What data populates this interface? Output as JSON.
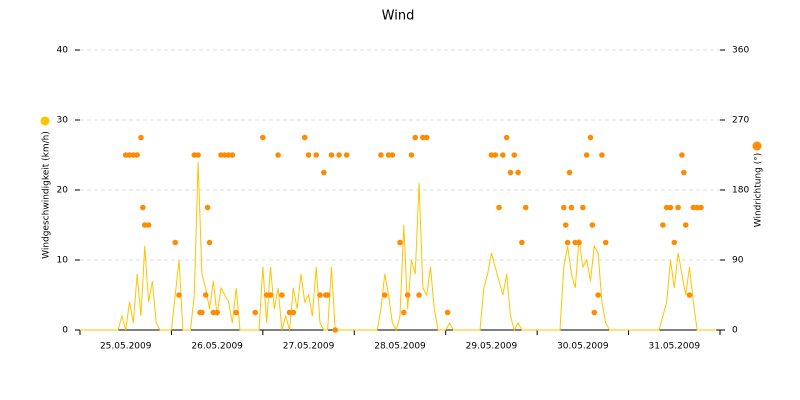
{
  "chart_data": {
    "type": "line",
    "title": "Wind",
    "categories": [
      "25.05.2009",
      "26.05.2009",
      "27.05.2009",
      "28.05.2009",
      "29.05.2009",
      "30.05.2009",
      "31.05.2009"
    ],
    "xlim": [
      0,
      168
    ],
    "xticks": [
      0,
      24,
      48,
      72,
      96,
      120,
      144,
      168
    ],
    "ylim": [
      0,
      40
    ],
    "yticks": [
      0,
      10,
      20,
      30,
      40
    ],
    "y2lim": [
      0,
      360
    ],
    "y2ticks": [
      0,
      90,
      180,
      270,
      360
    ],
    "grid": true,
    "series": [
      {
        "name": "Windgeschwindigkeit (km/h)",
        "color": "#ffc400",
        "x": [
          0,
          1,
          2,
          3,
          4,
          5,
          6,
          7,
          8,
          9,
          10,
          11,
          12,
          13,
          14,
          15,
          16,
          17,
          18,
          19,
          20,
          21,
          22,
          23,
          24,
          25,
          26,
          27,
          28,
          29,
          30,
          31,
          32,
          33,
          34,
          35,
          36,
          37,
          38,
          39,
          40,
          41,
          42,
          43,
          44,
          45,
          46,
          47,
          48,
          49,
          50,
          51,
          52,
          53,
          54,
          55,
          56,
          57,
          58,
          59,
          60,
          61,
          62,
          63,
          64,
          65,
          66,
          67,
          68,
          69,
          70,
          71,
          72,
          73,
          74,
          75,
          76,
          77,
          78,
          79,
          80,
          81,
          82,
          83,
          84,
          85,
          86,
          87,
          88,
          89,
          90,
          91,
          92,
          93,
          94,
          95,
          96,
          97,
          98,
          99,
          100,
          101,
          102,
          103,
          104,
          105,
          106,
          107,
          108,
          109,
          110,
          111,
          112,
          113,
          114,
          115,
          116,
          117,
          118,
          119,
          120,
          121,
          122,
          123,
          124,
          125,
          126,
          127,
          128,
          129,
          130,
          131,
          132,
          133,
          134,
          135,
          136,
          137,
          138,
          139,
          140,
          141,
          142,
          143,
          144,
          145,
          146,
          147,
          148,
          149,
          150,
          151,
          152,
          153,
          154,
          155,
          156,
          157,
          158,
          159,
          160,
          161,
          162,
          163,
          164,
          165,
          166,
          167
        ],
        "values": [
          0,
          0,
          0,
          0,
          0,
          0,
          0,
          0,
          0,
          0,
          0,
          2,
          0,
          4,
          1,
          8,
          2,
          12,
          4,
          7,
          1,
          0,
          0,
          0,
          0,
          5,
          10,
          0,
          0,
          0,
          5,
          24,
          8,
          6,
          3,
          7,
          2,
          6,
          5,
          4,
          1,
          6,
          0,
          0,
          0,
          0,
          0,
          0,
          9,
          1,
          9,
          3,
          6,
          0,
          2,
          0,
          6,
          3,
          8,
          4,
          5,
          2,
          9,
          1,
          0,
          0,
          9,
          0,
          0,
          0,
          0,
          0,
          0,
          0,
          0,
          0,
          0,
          0,
          0,
          3,
          8,
          5,
          1,
          0,
          2,
          15,
          3,
          10,
          8,
          21,
          6,
          5,
          9,
          3,
          0,
          0,
          0,
          1,
          0,
          0,
          0,
          0,
          0,
          0,
          0,
          0,
          6,
          8,
          11,
          9,
          7,
          5,
          8,
          2,
          0,
          1,
          0,
          0,
          0,
          0,
          0,
          0,
          0,
          0,
          0,
          0,
          0,
          9,
          12,
          8,
          6,
          13,
          9,
          10,
          7,
          12,
          11,
          4,
          1,
          0,
          0,
          0,
          0,
          0,
          0,
          0,
          0,
          0,
          0,
          0,
          0,
          0,
          0,
          2,
          4,
          10,
          6,
          11,
          8,
          5,
          9,
          4,
          0,
          0,
          0,
          0,
          0,
          0
        ]
      },
      {
        "name": "Windrichtung (°)",
        "color": "#ff8c00",
        "axis": "y2",
        "type": "scatter",
        "x": [
          12,
          13,
          14,
          15,
          16,
          16.5,
          17,
          18,
          25,
          26,
          30,
          31,
          31.5,
          32,
          33,
          33.5,
          34,
          35,
          36,
          37,
          38,
          39,
          40,
          41,
          46,
          48,
          49,
          50,
          52,
          53,
          55,
          56,
          59,
          60,
          62,
          63,
          64,
          64.5,
          65,
          66,
          67,
          68,
          70,
          79,
          80,
          81,
          82,
          84,
          85,
          86,
          87,
          88,
          89,
          90,
          91,
          96.5,
          108,
          109,
          110,
          111,
          112,
          113,
          114,
          115,
          116,
          117,
          127,
          127.5,
          128,
          128.5,
          129,
          130,
          131,
          132,
          133,
          134,
          134.5,
          135,
          136,
          137,
          138,
          153,
          154,
          155,
          156,
          157,
          158,
          158.5,
          159,
          160,
          161,
          162,
          163
        ],
        "values": [
          225,
          225,
          225,
          225,
          247.5,
          157.5,
          135,
          135,
          112.5,
          45,
          225,
          225,
          22.5,
          22.5,
          45,
          157.5,
          112.5,
          22.5,
          22.5,
          225,
          225,
          225,
          225,
          22.5,
          22.5,
          247.5,
          45,
          45,
          225,
          45,
          22.5,
          22.5,
          247.5,
          225,
          225,
          45,
          202.5,
          45,
          45,
          225,
          0,
          225,
          225,
          225,
          45,
          225,
          225,
          112.5,
          22.5,
          45,
          225,
          247.5,
          45,
          247.5,
          247.5,
          22.5,
          225,
          225,
          157.5,
          225,
          247.5,
          202.5,
          225,
          202.5,
          112.5,
          157.5,
          157.5,
          135,
          112.5,
          202.5,
          157.5,
          112.5,
          112.5,
          157.5,
          225,
          247.5,
          135,
          22.5,
          45,
          225,
          112.5,
          135,
          157.5,
          157.5,
          112.5,
          157.5,
          225,
          202.5,
          135,
          45,
          157.5,
          157.5,
          157.5
        ]
      }
    ]
  }
}
